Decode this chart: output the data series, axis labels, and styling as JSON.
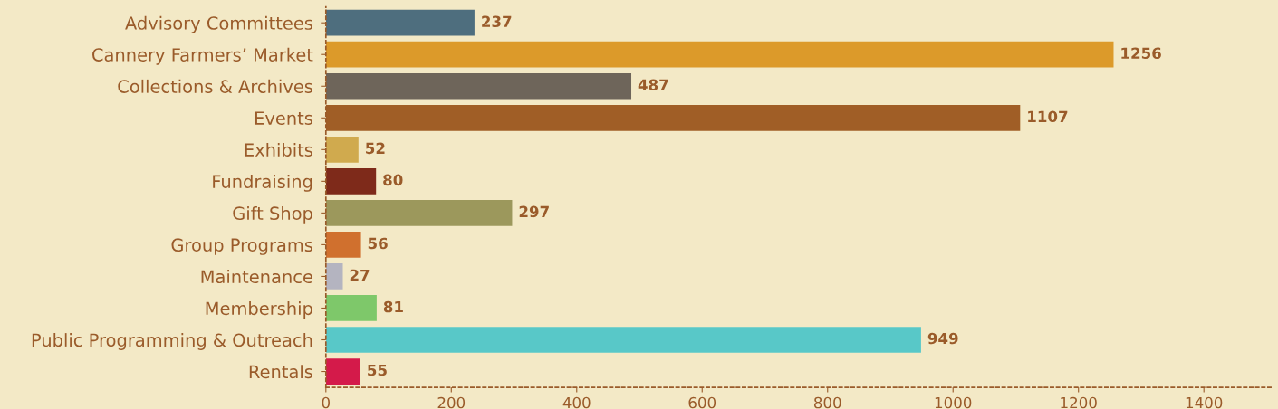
{
  "chart_data": {
    "type": "bar",
    "orientation": "horizontal",
    "categories": [
      "Advisory Committees",
      "Cannery Farmers’ Market",
      "Collections & Archives",
      "Events",
      "Exhibits",
      "Fundraising",
      "Gift Shop",
      "Group Programs",
      "Maintenance",
      "Membership",
      "Public Programming & Outreach",
      "Rentals"
    ],
    "values": [
      237,
      1256,
      487,
      1107,
      52,
      80,
      297,
      56,
      27,
      81,
      949,
      55
    ],
    "colors": [
      "#4e6e7e",
      "#dc9a2a",
      "#6e655a",
      "#a05e26",
      "#d0aa4e",
      "#7e2a1a",
      "#9c985c",
      "#d0702e",
      "#b4b4c0",
      "#7ec86a",
      "#58c8c8",
      "#d41a4a"
    ],
    "xlim": [
      0,
      1510
    ],
    "xticks": [
      0,
      200,
      400,
      600,
      800,
      1000,
      1200,
      1400
    ],
    "data_labels": true,
    "grid": false,
    "legend": false
  }
}
